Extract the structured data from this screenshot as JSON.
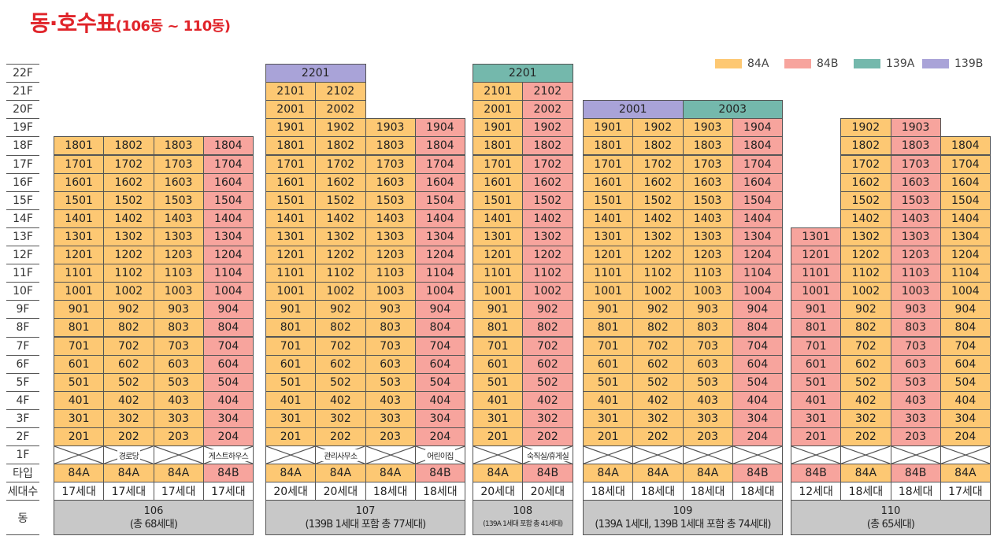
{
  "title": {
    "main": "동·호수표",
    "sub": "(106동 ~ 110동)"
  },
  "colors": {
    "84A": "#fdc873",
    "84B": "#f7a49d",
    "139A": "#74b8ac",
    "139B": "#a9a3d8"
  },
  "legend": [
    {
      "label": "84A",
      "color": "#fdc873"
    },
    {
      "label": "84B",
      "color": "#f7a49d"
    },
    {
      "label": "139A",
      "color": "#74b8ac"
    },
    {
      "label": "139B",
      "color": "#a9a3d8"
    }
  ],
  "floor_labels": [
    "22F",
    "21F",
    "20F",
    "19F",
    "18F",
    "17F",
    "16F",
    "15F",
    "14F",
    "13F",
    "12F",
    "11F",
    "10F",
    "9F",
    "8F",
    "7F",
    "6F",
    "5F",
    "4F",
    "3F",
    "2F",
    "1F"
  ],
  "row_labels": {
    "type": "타입",
    "households": "세대수",
    "dong": "동"
  },
  "buildings": [
    {
      "id": "106",
      "columns": [
        {
          "line": 1,
          "top": 18,
          "type": "84A",
          "households": "17세대",
          "ground": ""
        },
        {
          "line": 2,
          "top": 18,
          "type": "84A",
          "households": "17세대",
          "ground": "경로당"
        },
        {
          "line": 3,
          "top": 18,
          "type": "84A",
          "households": "17세대",
          "ground": ""
        },
        {
          "line": 4,
          "top": 18,
          "type": "84B",
          "households": "17세대",
          "ground": "게스트하우스"
        }
      ],
      "penthouses": [],
      "dong_name": "106",
      "dong_note": "(총 68세대)"
    },
    {
      "id": "107",
      "columns": [
        {
          "line": 1,
          "top": 21,
          "type": "84A",
          "households": "20세대",
          "ground": ""
        },
        {
          "line": 2,
          "top": 21,
          "type": "84A",
          "households": "20세대",
          "ground": "관리사무소"
        },
        {
          "line": 3,
          "top": 19,
          "type": "84A",
          "households": "18세대",
          "ground": ""
        },
        {
          "line": 4,
          "top": 19,
          "type": "84B",
          "households": "18세대",
          "ground": "어린이집"
        }
      ],
      "penthouses": [
        {
          "floor": 22,
          "span": [
            1,
            2
          ],
          "number": "2201",
          "type": "139B"
        }
      ],
      "dong_name": "107",
      "dong_note": "(139B 1세대 포함 총 77세대)"
    },
    {
      "id": "108",
      "columns": [
        {
          "line": 1,
          "top": 21,
          "type": "84A",
          "households": "20세대",
          "ground": ""
        },
        {
          "line": 2,
          "top": 21,
          "type": "84B",
          "households": "20세대",
          "ground": "숙직실/휴게실"
        }
      ],
      "penthouses": [
        {
          "floor": 22,
          "span": [
            1,
            2
          ],
          "number": "2201",
          "type": "139A"
        }
      ],
      "dong_name": "108",
      "dong_note": "(139A 1세대 포함 총 41세대)"
    },
    {
      "id": "109",
      "columns": [
        {
          "line": 1,
          "top": 19,
          "type": "84A",
          "households": "18세대",
          "ground": ""
        },
        {
          "line": 2,
          "top": 19,
          "type": "84A",
          "households": "18세대",
          "ground": ""
        },
        {
          "line": 3,
          "top": 19,
          "type": "84A",
          "households": "18세대",
          "ground": ""
        },
        {
          "line": 4,
          "top": 19,
          "type": "84B",
          "households": "18세대",
          "ground": ""
        }
      ],
      "penthouses": [
        {
          "floor": 20,
          "span": [
            1,
            2
          ],
          "number": "2001",
          "type": "139B"
        },
        {
          "floor": 20,
          "span": [
            3,
            4
          ],
          "number": "2003",
          "type": "139A"
        }
      ],
      "dong_name": "109",
      "dong_note": "(139A 1세대, 139B 1세대 포함 총 74세대)"
    },
    {
      "id": "110",
      "columns": [
        {
          "line": 1,
          "top": 13,
          "type": "84B",
          "households": "12세대",
          "ground": ""
        },
        {
          "line": 2,
          "top": 19,
          "type": "84A",
          "households": "18세대",
          "ground": ""
        },
        {
          "line": 3,
          "top": 19,
          "type": "84B",
          "households": "18세대",
          "ground": ""
        },
        {
          "line": 4,
          "top": 18,
          "type": "84A",
          "households": "17세대",
          "ground": ""
        }
      ],
      "penthouses": [],
      "dong_name": "110",
      "dong_note": "(총 65세대)"
    }
  ]
}
